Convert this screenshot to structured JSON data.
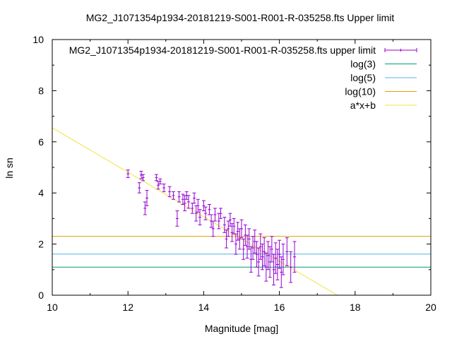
{
  "chart_data": {
    "type": "scatter",
    "title": "MG2_J1071354p1934-20181219-S001-R001-R-035258.fts Upper limit",
    "xlabel": "Magnitude [mag]",
    "ylabel": "ln sn",
    "xlim": [
      10,
      20
    ],
    "ylim": [
      0,
      10
    ],
    "xticks": [
      "10",
      "12",
      "14",
      "16",
      "18",
      "20"
    ],
    "yticks": [
      "0",
      "2",
      "4",
      "6",
      "8",
      "10"
    ],
    "grid": false,
    "legend_position": "top-right",
    "series": [
      {
        "name": "MG2_J1071354p1934-20181219-S001-R001-R-035258.fts upper limit",
        "kind": "errorbars",
        "color": "#9400d3",
        "points": [
          [
            12.0,
            4.75,
            0.15
          ],
          [
            12.3,
            4.2,
            0.2
          ],
          [
            12.35,
            4.7,
            0.15
          ],
          [
            12.4,
            4.6,
            0.12
          ],
          [
            12.45,
            3.4,
            0.25
          ],
          [
            12.5,
            3.8,
            0.3
          ],
          [
            12.75,
            4.6,
            0.12
          ],
          [
            12.8,
            4.3,
            0.15
          ],
          [
            12.85,
            4.45,
            0.1
          ],
          [
            12.95,
            4.2,
            0.15
          ],
          [
            13.1,
            4.05,
            0.2
          ],
          [
            13.2,
            3.9,
            0.15
          ],
          [
            13.3,
            3.0,
            0.3
          ],
          [
            13.35,
            3.85,
            0.2
          ],
          [
            13.45,
            3.75,
            0.2
          ],
          [
            13.5,
            3.6,
            0.3
          ],
          [
            13.55,
            3.9,
            0.15
          ],
          [
            13.6,
            3.65,
            0.25
          ],
          [
            13.7,
            3.4,
            0.2
          ],
          [
            13.75,
            3.8,
            0.2
          ],
          [
            13.8,
            3.2,
            0.3
          ],
          [
            13.85,
            3.5,
            0.25
          ],
          [
            13.9,
            3.05,
            0.3
          ],
          [
            14.0,
            3.5,
            0.2
          ],
          [
            14.05,
            3.2,
            0.25
          ],
          [
            14.15,
            3.35,
            0.2
          ],
          [
            14.2,
            2.9,
            0.25
          ],
          [
            14.25,
            2.6,
            0.3
          ],
          [
            14.3,
            3.15,
            0.25
          ],
          [
            14.4,
            2.9,
            0.3
          ],
          [
            14.45,
            3.2,
            0.2
          ],
          [
            14.55,
            2.75,
            0.3
          ],
          [
            14.6,
            2.2,
            0.35
          ],
          [
            14.65,
            2.6,
            0.3
          ],
          [
            14.7,
            2.95,
            0.25
          ],
          [
            14.75,
            2.45,
            0.35
          ],
          [
            14.8,
            2.7,
            0.3
          ],
          [
            14.85,
            2.0,
            0.4
          ],
          [
            14.9,
            2.5,
            0.35
          ],
          [
            14.95,
            2.2,
            0.4
          ],
          [
            15.0,
            2.6,
            0.35
          ],
          [
            15.05,
            1.8,
            0.4
          ],
          [
            15.1,
            2.35,
            0.4
          ],
          [
            15.15,
            1.9,
            0.45
          ],
          [
            15.2,
            2.2,
            0.4
          ],
          [
            15.25,
            1.4,
            0.5
          ],
          [
            15.3,
            1.85,
            0.45
          ],
          [
            15.35,
            2.1,
            0.45
          ],
          [
            15.4,
            1.6,
            0.5
          ],
          [
            15.45,
            1.3,
            0.55
          ],
          [
            15.5,
            1.9,
            0.5
          ],
          [
            15.55,
            1.5,
            0.5
          ],
          [
            15.6,
            1.7,
            0.55
          ],
          [
            15.65,
            1.1,
            0.55
          ],
          [
            15.7,
            1.55,
            0.55
          ],
          [
            15.75,
            1.3,
            0.6
          ],
          [
            15.8,
            1.8,
            0.5
          ],
          [
            15.85,
            1.0,
            0.6
          ],
          [
            15.9,
            1.45,
            0.6
          ],
          [
            15.95,
            1.2,
            0.6
          ],
          [
            16.0,
            1.6,
            0.55
          ],
          [
            16.05,
            0.9,
            0.6
          ],
          [
            16.1,
            1.4,
            0.6
          ],
          [
            16.2,
            1.7,
            0.55
          ],
          [
            16.3,
            1.1,
            0.6
          ],
          [
            16.4,
            1.5,
            0.6
          ]
        ]
      },
      {
        "name": "log(3)",
        "kind": "hline",
        "y": 1.0986,
        "color": "#009e73"
      },
      {
        "name": "log(5)",
        "kind": "hline",
        "y": 1.6094,
        "color": "#56b4e9"
      },
      {
        "name": "log(10)",
        "kind": "hline",
        "y": 2.3026,
        "color": "#e69f00"
      },
      {
        "name": "a*x+b",
        "kind": "line",
        "a": -0.87,
        "b": 15.25,
        "color": "#f0e442"
      }
    ]
  }
}
